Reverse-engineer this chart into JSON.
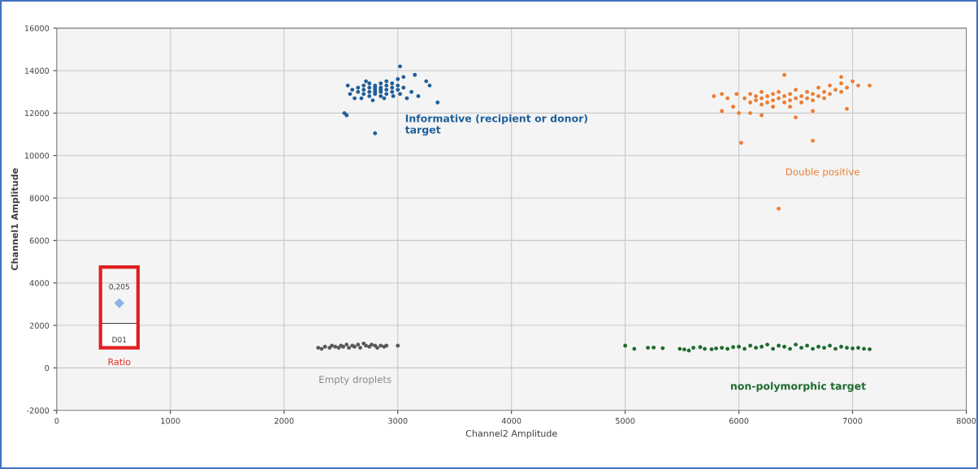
{
  "chart_data": {
    "type": "scatter",
    "xlabel": "Channel2 Amplitude",
    "ylabel": "Channel1 Amplitude",
    "xlim": [
      0,
      8000
    ],
    "xticks": [
      0,
      1000,
      2000,
      3000,
      4000,
      5000,
      6000,
      7000,
      8000
    ],
    "ylim": [
      -2000,
      16000
    ],
    "yticks": [
      -2000,
      0,
      2000,
      4000,
      6000,
      8000,
      10000,
      12000,
      14000,
      16000
    ],
    "grid": true,
    "marker": "circle",
    "series": [
      {
        "color": "#1f5f9a",
        "x": [
          2600,
          2650,
          2650,
          2700,
          2700,
          2700,
          2750,
          2750,
          2750,
          2750,
          2800,
          2800,
          2800,
          2800,
          2800,
          2850,
          2850,
          2850,
          2850,
          2850,
          2900,
          2900,
          2900,
          2900,
          2950,
          2950,
          2950,
          3000,
          3000,
          3000,
          3050,
          3050,
          2580,
          2620,
          2680,
          2560,
          2720,
          2780,
          2880,
          2960,
          3020,
          2550,
          2530,
          2800,
          3020,
          3150,
          3250,
          3280,
          3350,
          3180,
          3120,
          3080
        ],
        "values": [
          13100,
          13000,
          13200,
          12900,
          13100,
          13300,
          12800,
          13000,
          13200,
          13400,
          12900,
          13000,
          13100,
          13200,
          13300,
          12800,
          13000,
          13100,
          13200,
          13400,
          12900,
          13100,
          13300,
          13500,
          13000,
          13200,
          13400,
          13100,
          13300,
          13600,
          13200,
          13700,
          12900,
          12700,
          12700,
          13300,
          13500,
          12600,
          12700,
          12800,
          12900,
          11900,
          12000,
          11050,
          14200,
          13800,
          13500,
          13300,
          12500,
          12800,
          13000,
          12700
        ]
      },
      {
        "color": "#ed7d31",
        "x": [
          6050,
          6100,
          6100,
          6150,
          6150,
          6200,
          6200,
          6200,
          6250,
          6250,
          6300,
          6300,
          6300,
          6350,
          6350,
          6400,
          6400,
          6450,
          6450,
          6450,
          6500,
          6500,
          6550,
          6550,
          6600,
          6600,
          6650,
          6650,
          6700,
          6700,
          6750,
          6750,
          6800,
          6800,
          6850,
          6900,
          6900,
          6950,
          7000,
          7050,
          7150,
          5780,
          5850,
          5900,
          5950,
          5980,
          5850,
          6000,
          6100,
          6200,
          6500,
          6650,
          6950,
          6400,
          6900,
          6020,
          6650,
          6350
        ],
        "values": [
          12700,
          12500,
          12900,
          12600,
          12800,
          12400,
          12700,
          13000,
          12500,
          12800,
          12600,
          12900,
          12300,
          12700,
          13000,
          12500,
          12800,
          12600,
          12900,
          12300,
          12700,
          13100,
          12500,
          12800,
          12700,
          13000,
          12600,
          12900,
          12800,
          13200,
          12700,
          13000,
          12900,
          13300,
          13100,
          13000,
          13400,
          13200,
          13500,
          13300,
          13300,
          12800,
          12900,
          12700,
          12300,
          12900,
          12100,
          12000,
          12000,
          11900,
          11800,
          12100,
          12200,
          13800,
          13700,
          10600,
          10700,
          7500
        ]
      },
      {
        "color": "#595959",
        "x": [
          2300,
          2330,
          2360,
          2400,
          2420,
          2450,
          2480,
          2500,
          2520,
          2550,
          2570,
          2600,
          2620,
          2650,
          2670,
          2700,
          2720,
          2750,
          2770,
          2800,
          2820,
          2850,
          2880,
          2900,
          3000
        ],
        "values": [
          950,
          900,
          1000,
          950,
          1050,
          1000,
          950,
          1050,
          1000,
          1100,
          950,
          1050,
          1000,
          1100,
          950,
          1150,
          1050,
          1000,
          1100,
          1050,
          950,
          1050,
          1000,
          1050,
          1050
        ]
      },
      {
        "color": "#1e6b2e",
        "x": [
          5000,
          5080,
          5200,
          5250,
          5330,
          5480,
          5520,
          5560,
          5600,
          5660,
          5700,
          5760,
          5800,
          5850,
          5900,
          5950,
          6000,
          6050,
          6100,
          6150,
          6200,
          6250,
          6300,
          6350,
          6400,
          6450,
          6500,
          6550,
          6600,
          6650,
          6700,
          6750,
          6800,
          6850,
          6900,
          6950,
          7000,
          7050,
          7100,
          7150
        ],
        "values": [
          1050,
          900,
          950,
          960,
          930,
          900,
          870,
          820,
          950,
          980,
          900,
          880,
          920,
          950,
          900,
          980,
          1000,
          900,
          1050,
          950,
          1000,
          1100,
          900,
          1050,
          1000,
          900,
          1100,
          950,
          1050,
          900,
          1000,
          950,
          1050,
          900,
          1000,
          950,
          920,
          950,
          900,
          880
        ]
      },
      {
        "color": "#8db4e2",
        "marker": "diamond",
        "x": [
          550
        ],
        "values": [
          3050
        ]
      }
    ],
    "annotations": [
      "Informative (recipient or donor)\ntarget",
      "Double positive",
      "Empty droplets",
      "non-polymorphic target",
      "0,205",
      "D01",
      "Ratio"
    ]
  }
}
